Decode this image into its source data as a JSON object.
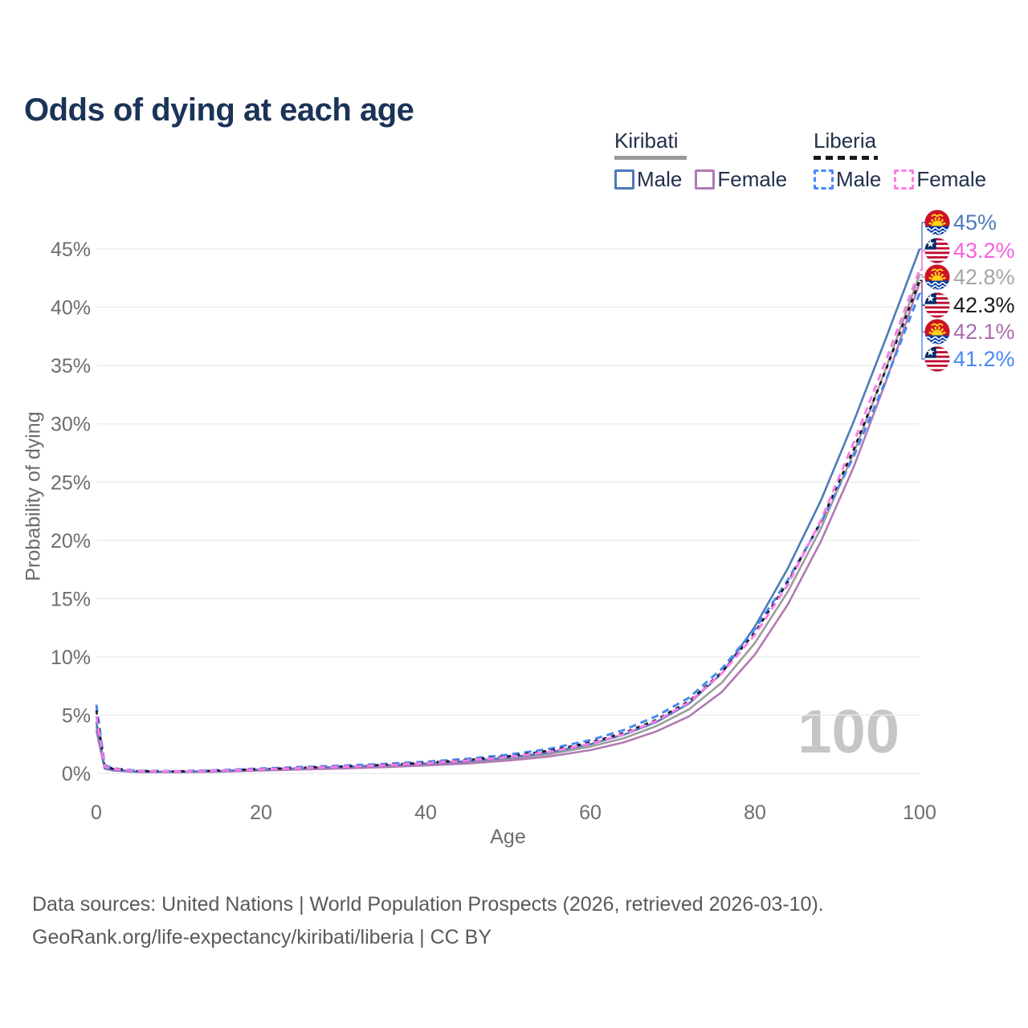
{
  "header": {
    "title": "Odds of dying at each age"
  },
  "legend": {
    "groups": [
      {
        "country": "Kiribati",
        "underline_style": "solid",
        "underline_color": "#9a9a9a",
        "items": [
          {
            "label": "Male",
            "color": "#4e7ab8",
            "dashed": false
          },
          {
            "label": "Female",
            "color": "#b279b5",
            "dashed": false
          }
        ]
      },
      {
        "country": "Liberia",
        "underline_style": "dashed",
        "underline_color": "#1a1a1a",
        "items": [
          {
            "label": "Male",
            "color": "#4788f4",
            "dashed": true
          },
          {
            "label": "Female",
            "color": "#fb7be9",
            "dashed": true
          }
        ]
      }
    ]
  },
  "chart_data": {
    "type": "line",
    "title": "Odds of dying at each age",
    "xlabel": "Age",
    "ylabel": "Probability of dying",
    "watermark": "100",
    "grid": "horizontal",
    "legend_position": "top-right",
    "xlim": [
      0,
      100
    ],
    "ylim": [
      0,
      47
    ],
    "x_ticks": [
      0,
      20,
      40,
      60,
      80,
      100
    ],
    "y_ticks": [
      0,
      5,
      10,
      15,
      20,
      25,
      30,
      35,
      40,
      45
    ],
    "y_tick_suffix": "%",
    "x": [
      0,
      1,
      2,
      5,
      10,
      15,
      20,
      25,
      30,
      35,
      40,
      45,
      50,
      55,
      60,
      64,
      68,
      72,
      76,
      80,
      84,
      88,
      92,
      96,
      100
    ],
    "series": [
      {
        "name": "Kiribati Both sexes",
        "country": "Kiribati",
        "sex": "all",
        "style": "solid",
        "color": "#9d9d9d",
        "width": 2.6,
        "dash": null,
        "end_label": "42.8%",
        "label_color": "#a6a6a6",
        "flag": "kiribati",
        "values": [
          4.05,
          0.45,
          0.28,
          0.14,
          0.12,
          0.18,
          0.3,
          0.4,
          0.5,
          0.62,
          0.78,
          0.97,
          1.25,
          1.65,
          2.3,
          3.0,
          4.05,
          5.5,
          7.8,
          11.2,
          15.6,
          21.0,
          27.5,
          34.9,
          42.8
        ]
      },
      {
        "name": "Kiribati Female",
        "country": "Kiribati",
        "sex": "female",
        "style": "solid",
        "color": "#b279b5",
        "width": 2.6,
        "dash": null,
        "end_label": "42.1%",
        "label_color": "#ab6bad",
        "flag": "kiribati",
        "values": [
          3.7,
          0.4,
          0.25,
          0.12,
          0.1,
          0.15,
          0.25,
          0.34,
          0.43,
          0.54,
          0.68,
          0.85,
          1.1,
          1.45,
          2.0,
          2.65,
          3.6,
          4.9,
          7.0,
          10.2,
          14.5,
          19.9,
          26.3,
          33.8,
          42.1
        ]
      },
      {
        "name": "Kiribati Male",
        "country": "Kiribati",
        "sex": "male",
        "style": "solid",
        "color": "#4e7ab8",
        "width": 2.6,
        "dash": null,
        "end_label": "45%",
        "label_color": "#4e7ab8",
        "flag": "kiribati",
        "values": [
          4.4,
          0.5,
          0.3,
          0.16,
          0.13,
          0.2,
          0.34,
          0.45,
          0.55,
          0.68,
          0.85,
          1.05,
          1.35,
          1.8,
          2.5,
          3.3,
          4.4,
          6.0,
          8.6,
          12.6,
          17.6,
          23.4,
          30.2,
          37.5,
          45.0
        ]
      },
      {
        "name": "Liberia Male",
        "country": "Liberia",
        "sex": "male",
        "style": "dashed",
        "color": "#4788f4",
        "width": 3,
        "dash": "9 6",
        "end_label": "41.2%",
        "label_color": "#4788f4",
        "flag": "liberia",
        "values": [
          5.9,
          0.72,
          0.44,
          0.23,
          0.19,
          0.28,
          0.42,
          0.55,
          0.67,
          0.82,
          1.0,
          1.25,
          1.6,
          2.1,
          2.85,
          3.7,
          4.9,
          6.5,
          9.0,
          12.4,
          16.6,
          21.5,
          27.2,
          33.9,
          41.2
        ]
      },
      {
        "name": "Liberia Both sexes",
        "country": "Liberia",
        "sex": "all",
        "style": "dashed",
        "color": "#161616",
        "width": 2.6,
        "dash": "5 6",
        "end_label": "42.3%",
        "label_color": "#1a1a1a",
        "flag": "liberia",
        "values": [
          5.4,
          0.66,
          0.4,
          0.21,
          0.17,
          0.25,
          0.37,
          0.49,
          0.6,
          0.74,
          0.92,
          1.15,
          1.47,
          1.95,
          2.65,
          3.45,
          4.6,
          6.2,
          8.7,
          12.1,
          16.4,
          21.6,
          27.8,
          34.8,
          42.3
        ]
      },
      {
        "name": "Liberia Female",
        "country": "Liberia",
        "sex": "female",
        "style": "dashed",
        "color": "#fb7be9",
        "width": 3,
        "dash": "9 6",
        "end_label": "43.2%",
        "label_color": "#f65fdf",
        "flag": "liberia",
        "values": [
          4.9,
          0.6,
          0.38,
          0.2,
          0.16,
          0.24,
          0.35,
          0.46,
          0.57,
          0.7,
          0.88,
          1.1,
          1.4,
          1.85,
          2.55,
          3.35,
          4.5,
          6.1,
          8.6,
          11.9,
          16.2,
          21.7,
          28.4,
          35.6,
          43.2
        ]
      }
    ]
  },
  "footer": {
    "line1": "Data sources: United Nations | World Population Prospects (2026, retrieved 2026-03-10).",
    "line2": "GeoRank.org/life-expectancy/kiribati/liberia | CC BY"
  }
}
